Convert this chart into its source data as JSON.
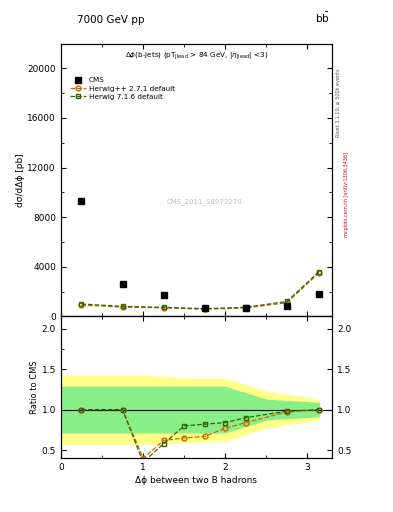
{
  "title_left": "7000 GeV pp",
  "title_right": "b$\\bar{\\text{b}}$",
  "ylabel_main": "dσ/dΔϕ [pb]",
  "ylabel_ratio": "Ratio to CMS",
  "xlabel": "Δϕ between two B hadrons",
  "watermark": "CMS_2011_S8973270",
  "right_label": "mcplots.cern.ch [arXiv:1306.3436]",
  "right_label2": "Rivet 3.1.10, ≥ 500k events",
  "cms_x": [
    0.25,
    0.75,
    1.25,
    1.75,
    2.25,
    2.75,
    3.14
  ],
  "cms_y": [
    9300,
    2600,
    1750,
    700,
    650,
    800,
    1800
  ],
  "herwig_pp_x": [
    0.25,
    0.75,
    1.25,
    1.75,
    2.25,
    2.75,
    3.14
  ],
  "herwig_pp_y": [
    900,
    750,
    680,
    580,
    680,
    1100,
    3500
  ],
  "herwig_716_x": [
    0.25,
    0.75,
    1.25,
    1.75,
    2.25,
    2.75,
    3.14
  ],
  "herwig_716_y": [
    1000,
    800,
    730,
    620,
    730,
    1200,
    3600
  ],
  "band_x": [
    0.0,
    0.5,
    1.0,
    1.5,
    2.0,
    2.5,
    3.14
  ],
  "yellow_lo": [
    0.58,
    0.58,
    0.58,
    0.6,
    0.62,
    0.78,
    0.88
  ],
  "yellow_hi": [
    1.42,
    1.42,
    1.42,
    1.38,
    1.38,
    1.22,
    1.12
  ],
  "green_lo": [
    0.72,
    0.72,
    0.72,
    0.72,
    0.72,
    0.88,
    0.92
  ],
  "green_hi": [
    1.28,
    1.28,
    1.28,
    1.28,
    1.28,
    1.12,
    1.08
  ],
  "ratio_herwig_pp_x": [
    0.25,
    0.75,
    1.0,
    1.25,
    1.5,
    1.75,
    2.0,
    2.25,
    2.75,
    3.14
  ],
  "ratio_herwig_pp_y": [
    1.0,
    1.0,
    0.4,
    0.62,
    0.65,
    0.67,
    0.77,
    0.84,
    0.97,
    1.0
  ],
  "ratio_herwig_716_x": [
    0.25,
    0.75,
    1.0,
    1.25,
    1.5,
    1.75,
    2.0,
    2.25,
    2.75,
    3.14
  ],
  "ratio_herwig_716_y": [
    1.0,
    1.0,
    0.35,
    0.58,
    0.8,
    0.82,
    0.84,
    0.9,
    0.98,
    1.0
  ],
  "color_herwig_pp": "#cc6600",
  "color_herwig_716": "#336600",
  "color_cms": "#000000",
  "ylim_main": [
    0,
    22000
  ],
  "ylim_ratio": [
    0.4,
    2.15
  ],
  "xlim": [
    0.0,
    3.3
  ]
}
